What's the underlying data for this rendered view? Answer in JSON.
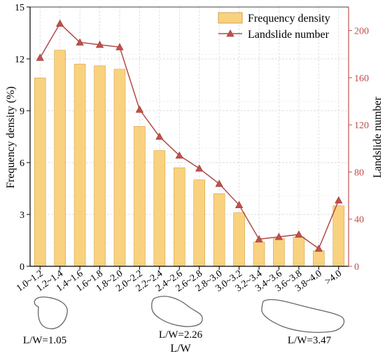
{
  "chart_data": {
    "type": "bar+line",
    "categories": [
      "1.0~1.2",
      "1.2~1.4",
      "1.4~1.6",
      "1.6~1.8",
      "1.8~2.0",
      "2.0~2.2",
      "2.2~2.4",
      "2.4~2.6",
      "2.6~2.8",
      "2.8~3.0",
      "3.0~3.2",
      "3.2~3.4",
      "3.4~3.6",
      "3.6~3.8",
      "3.8~4.0",
      ">4.0"
    ],
    "series": [
      {
        "name": "Frequency density",
        "type": "bar",
        "axis": "left",
        "values": [
          10.9,
          12.5,
          11.7,
          11.6,
          11.4,
          8.1,
          6.7,
          5.7,
          5.0,
          4.2,
          3.1,
          1.4,
          1.6,
          1.7,
          0.9,
          3.5
        ]
      },
      {
        "name": "Landslide number",
        "type": "line",
        "axis": "right",
        "values": [
          177,
          206,
          190,
          188,
          186,
          133,
          110,
          94,
          83,
          70,
          52,
          23,
          25,
          27,
          15,
          56
        ]
      }
    ],
    "xlabel": "L/W",
    "ylabel_left": "Frequency density (%)",
    "ylabel_right": "Landslide number",
    "ylim_left": [
      0,
      15
    ],
    "yticks_left": [
      0,
      3,
      6,
      9,
      12,
      15
    ],
    "ylim_right": [
      0,
      220
    ],
    "yticks_right": [
      0,
      40,
      80,
      120,
      160,
      200
    ],
    "grid": true,
    "legend": "top-right",
    "colors": {
      "bar_fill": "#F9D27F",
      "bar_edge": "#D2A34E",
      "line": "#B04A44",
      "marker": "#C0504D",
      "right_axis": "#C0504D"
    },
    "shape_labels": [
      "L/W=1.05",
      "L/W=2.26",
      "L/W=3.47"
    ]
  }
}
